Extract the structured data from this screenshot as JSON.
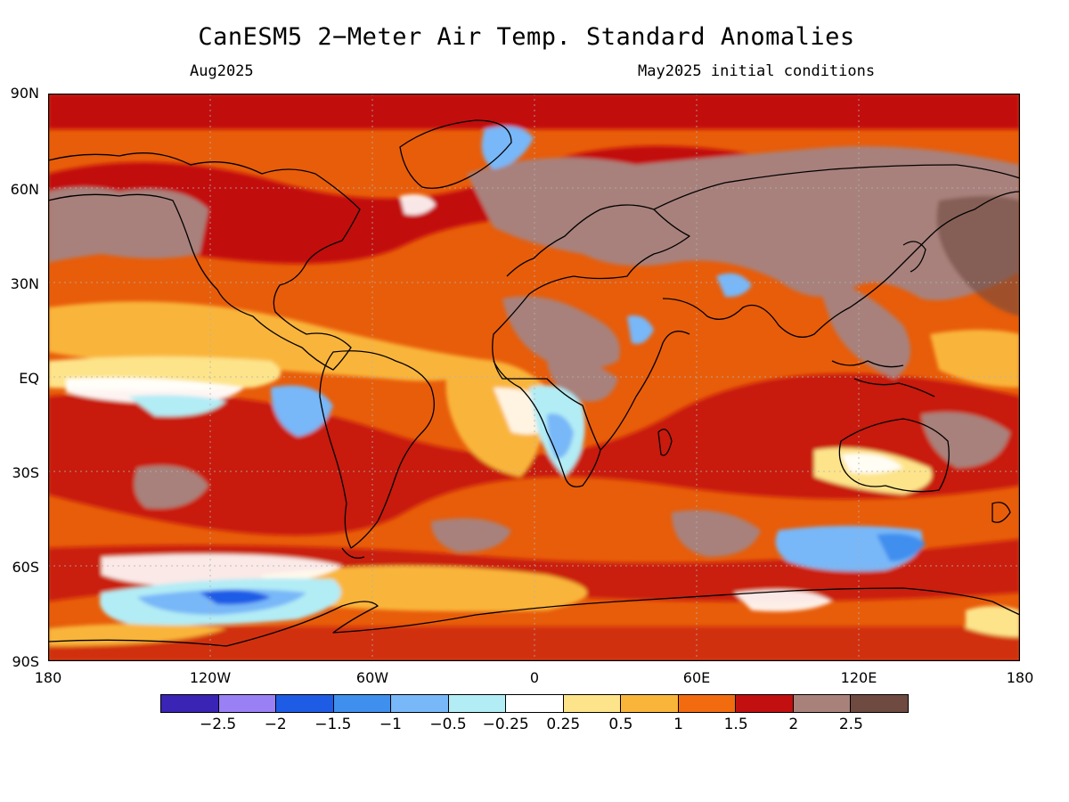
{
  "header": {
    "title": "CanESM5 2−Meter Air Temp. Standard Anomalies",
    "target_month": "Aug2025",
    "init_conditions": "May2025 initial conditions"
  },
  "map": {
    "projection": "equirectangular",
    "lat_labels": [
      "90N",
      "60N",
      "30N",
      "EQ",
      "30S",
      "60S",
      "90S"
    ],
    "lon_labels": [
      "180",
      "120W",
      "60W",
      "0",
      "60E",
      "120E",
      "180"
    ],
    "gridlines": "dotted",
    "background_anomaly_color": "#e85d0a"
  },
  "colorbar": {
    "colors": [
      "#3a24b5",
      "#9a80f5",
      "#1e5ce6",
      "#3f8fee",
      "#78b7f8",
      "#b2ecf5",
      "#ffffff",
      "#fde48a",
      "#f9b53a",
      "#f26b0e",
      "#c20f0f",
      "#a8817b",
      "#6e4a40"
    ],
    "labels": [
      "−2.5",
      "−2",
      "−1.5",
      "−1",
      "−0.5",
      "−0.25",
      "0.25",
      "0.5",
      "1",
      "1.5",
      "2",
      "2.5"
    ]
  }
}
